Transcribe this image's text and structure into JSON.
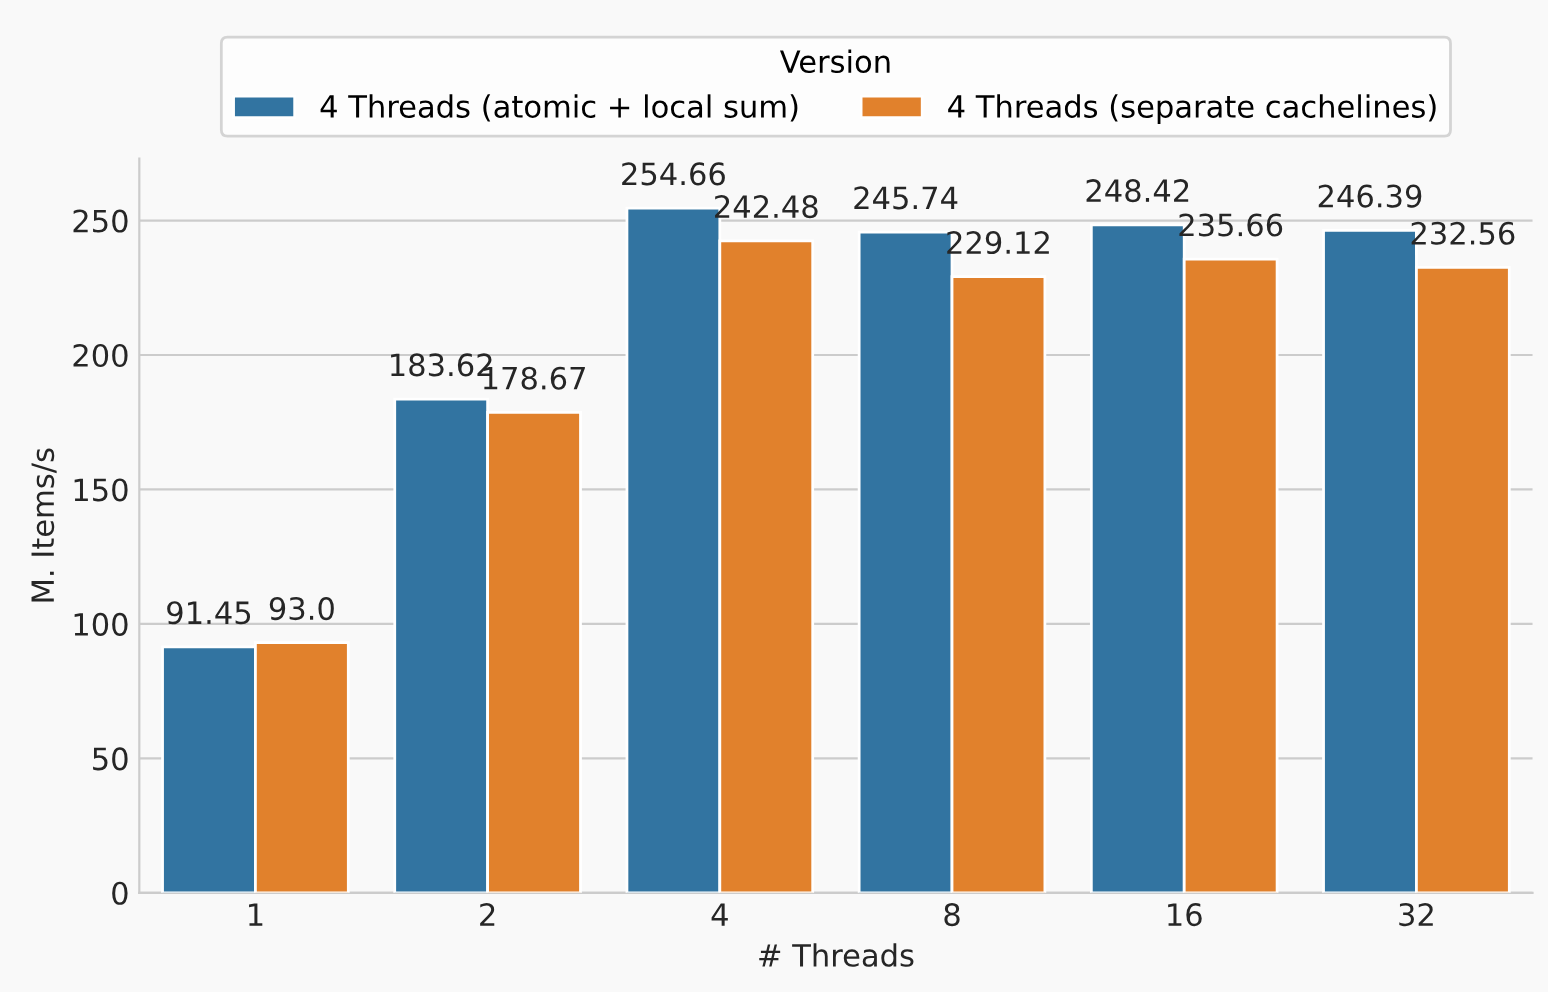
{
  "chart_data": {
    "type": "bar",
    "xlabel": "# Threads",
    "ylabel": "M. Items/s",
    "legend_title": "Version",
    "categories": [
      "1",
      "2",
      "4",
      "8",
      "16",
      "32"
    ],
    "series": [
      {
        "name": "4 Threads (atomic + local sum)",
        "color": "#3274a1",
        "values": [
          91.45,
          183.62,
          254.66,
          245.74,
          248.42,
          246.39
        ],
        "value_labels": [
          "91.45",
          "183.62",
          "254.66",
          "245.74",
          "248.42",
          "246.39"
        ]
      },
      {
        "name": "4 Threads (separate cachelines)",
        "color": "#e1812c",
        "values": [
          93.0,
          178.67,
          242.48,
          229.12,
          235.66,
          232.56
        ],
        "value_labels": [
          "93.0",
          "178.67",
          "242.48",
          "229.12",
          "235.66",
          "232.56"
        ]
      }
    ],
    "ylim": [
      0,
      273
    ],
    "yticks": [
      0,
      50,
      100,
      150,
      200,
      250
    ],
    "grid": "y",
    "legend": "top"
  }
}
